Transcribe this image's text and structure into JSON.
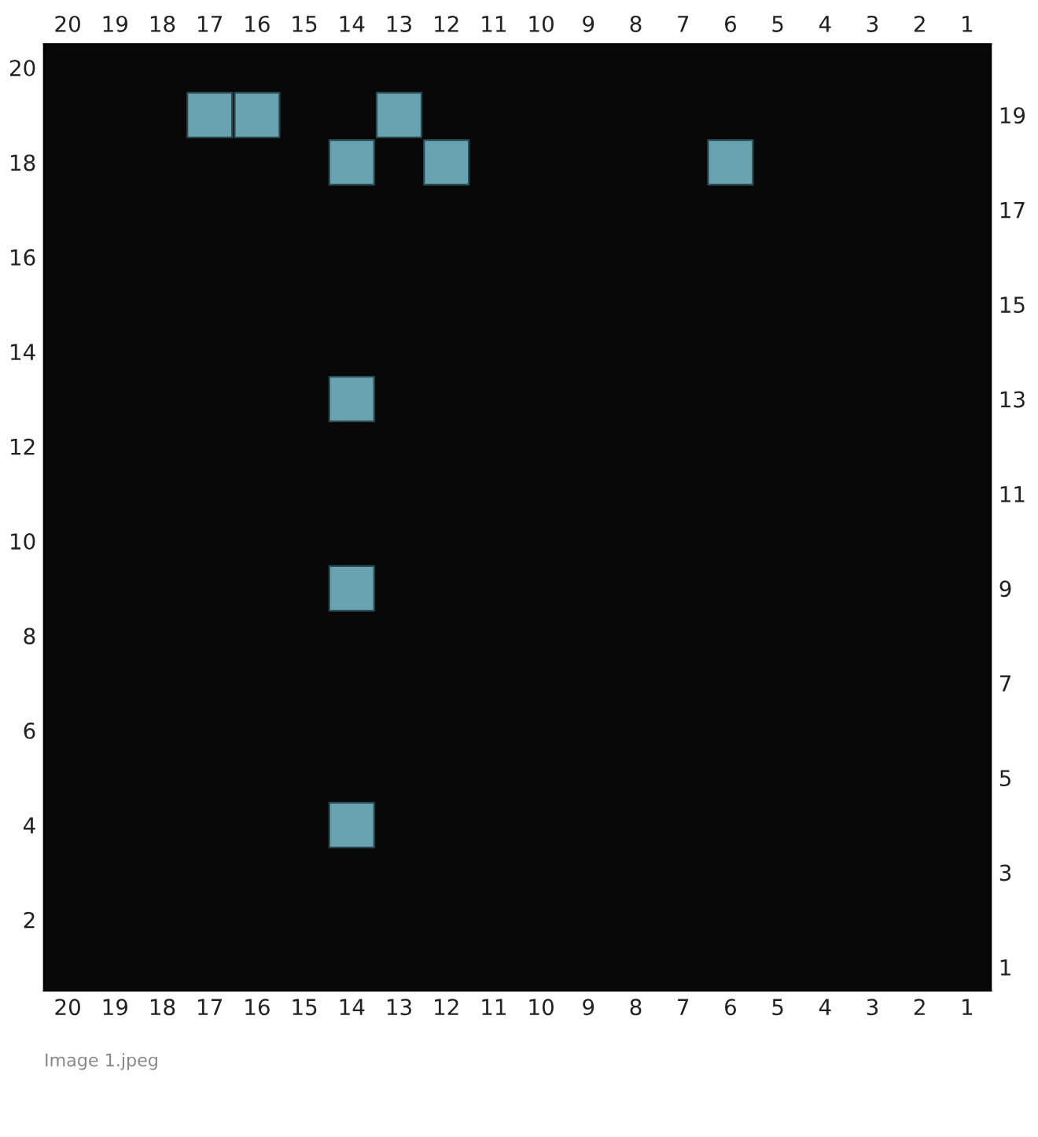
{
  "chart_data": {
    "type": "scatter",
    "x": [
      17,
      16,
      13,
      14,
      12,
      6,
      14,
      14,
      14
    ],
    "series": [
      {
        "color": "#6aa3b0",
        "values": [
          19,
          19,
          19,
          18,
          18,
          18,
          13,
          9,
          4
        ]
      }
    ],
    "xlim": [
      20.5,
      0.5
    ],
    "xticks": [
      20,
      19,
      18,
      17,
      16,
      15,
      14,
      13,
      12,
      11,
      10,
      9,
      8,
      7,
      6,
      5,
      4,
      3,
      2,
      1
    ],
    "x2lim": [
      20.5,
      0.5
    ],
    "x2ticks": [
      20,
      19,
      18,
      17,
      16,
      15,
      14,
      13,
      12,
      11,
      10,
      9,
      8,
      7,
      6,
      5,
      4,
      3,
      2,
      1
    ],
    "ylim": [
      0.5,
      20.5
    ],
    "yticks": [
      2,
      4,
      6,
      8,
      10,
      12,
      14,
      16,
      18,
      20
    ],
    "y2lim": [
      0.5,
      20.5
    ],
    "y2ticks": [
      1,
      3,
      5,
      7,
      9,
      11,
      13,
      15,
      17,
      19
    ],
    "marker": "square",
    "grid": false,
    "annotations": [
      "Image 1.jpeg"
    ]
  }
}
